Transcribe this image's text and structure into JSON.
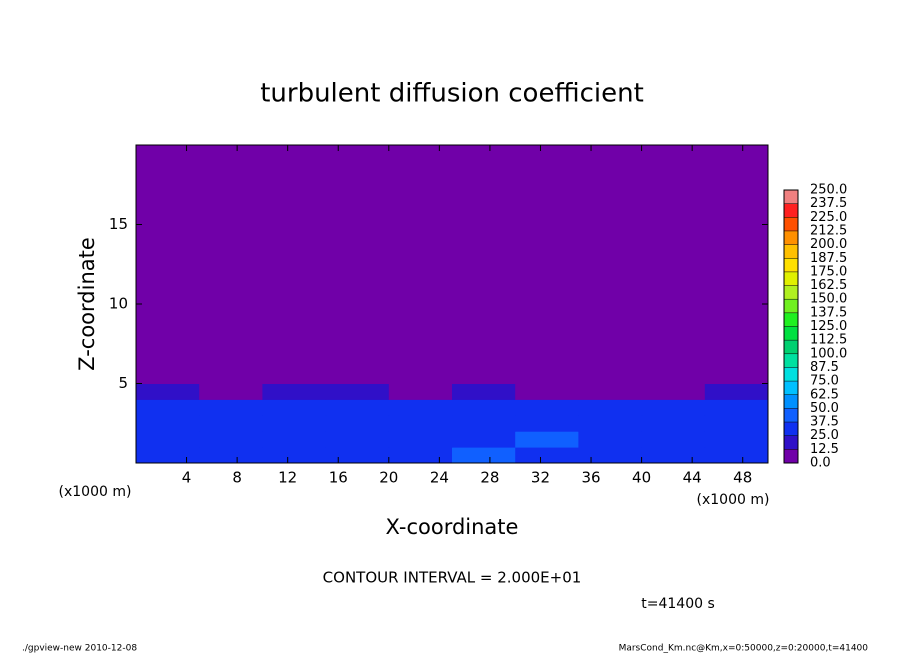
{
  "chart_data": {
    "type": "heatmap",
    "title": "turbulent diffusion coefficient",
    "x_label": "X-coordinate",
    "y_label": "Z-coordinate",
    "x_unit_label": "(x1000 m)",
    "y_unit_label": "(x1000 m)",
    "xlim": [
      0,
      50
    ],
    "ylim": [
      0,
      20
    ],
    "xticks": [
      4,
      8,
      12,
      16,
      20,
      24,
      28,
      32,
      36,
      40,
      44,
      48
    ],
    "yticks": [
      5,
      10,
      15
    ],
    "x_bins": [
      0,
      5,
      10,
      15,
      20,
      25,
      30,
      35,
      40,
      45,
      50
    ],
    "y_bins": [
      0,
      1,
      2,
      3,
      4,
      5,
      20
    ],
    "values": [
      [
        37,
        30,
        35,
        30,
        35,
        40,
        35,
        30,
        35,
        30
      ],
      [
        30,
        35,
        25,
        30,
        35,
        30,
        40,
        30,
        35,
        30
      ],
      [
        30,
        25,
        30,
        25,
        30,
        30,
        35,
        25,
        30,
        35
      ],
      [
        25,
        30,
        25,
        30,
        25,
        30,
        30,
        30,
        25,
        30
      ],
      [
        20,
        10,
        15,
        20,
        10,
        15,
        5,
        5,
        10,
        15
      ],
      [
        0,
        0,
        0,
        0,
        0,
        0,
        0,
        0,
        0,
        0
      ]
    ],
    "levels": [
      {
        "value": 0,
        "label": "0.0"
      },
      {
        "value": 12.5,
        "label": "12.5"
      },
      {
        "value": 25,
        "label": "25.0"
      },
      {
        "value": 37.5,
        "label": "37.5"
      },
      {
        "value": 50,
        "label": "50.0"
      },
      {
        "value": 62.5,
        "label": "62.5"
      },
      {
        "value": 75,
        "label": "75.0"
      },
      {
        "value": 87.5,
        "label": "87.5"
      },
      {
        "value": 100,
        "label": "100.0"
      },
      {
        "value": 112.5,
        "label": "112.5"
      },
      {
        "value": 125,
        "label": "125.0"
      },
      {
        "value": 137.5,
        "label": "137.5"
      },
      {
        "value": 150,
        "label": "150.0"
      },
      {
        "value": 162.5,
        "label": "162.5"
      },
      {
        "value": 175,
        "label": "175.0"
      },
      {
        "value": 187.5,
        "label": "187.5"
      },
      {
        "value": 200,
        "label": "200.0"
      },
      {
        "value": 212.5,
        "label": "212.5"
      },
      {
        "value": 225,
        "label": "225.0"
      },
      {
        "value": 237.5,
        "label": "237.5"
      },
      {
        "value": 250,
        "label": "250.0"
      }
    ],
    "colors": [
      "#7000a8",
      "#3010c8",
      "#1030f0",
      "#1060ff",
      "#0090ff",
      "#00c0ff",
      "#00e0e0",
      "#00e0a0",
      "#00d070",
      "#00e040",
      "#20f020",
      "#70f020",
      "#b0f020",
      "#e0f000",
      "#ffe000",
      "#ffc000",
      "#ff9000",
      "#ff5000",
      "#ff2020",
      "#f08080"
    ],
    "contour_interval": "CONTOUR INTERVAL = 2.000E+01",
    "time_label": "t=41400 s"
  },
  "footer": {
    "left": "./gpview-new  2010-12-08",
    "right": "MarsCond_Km.nc@Km,x=0:50000,z=0:20000,t=41400"
  }
}
